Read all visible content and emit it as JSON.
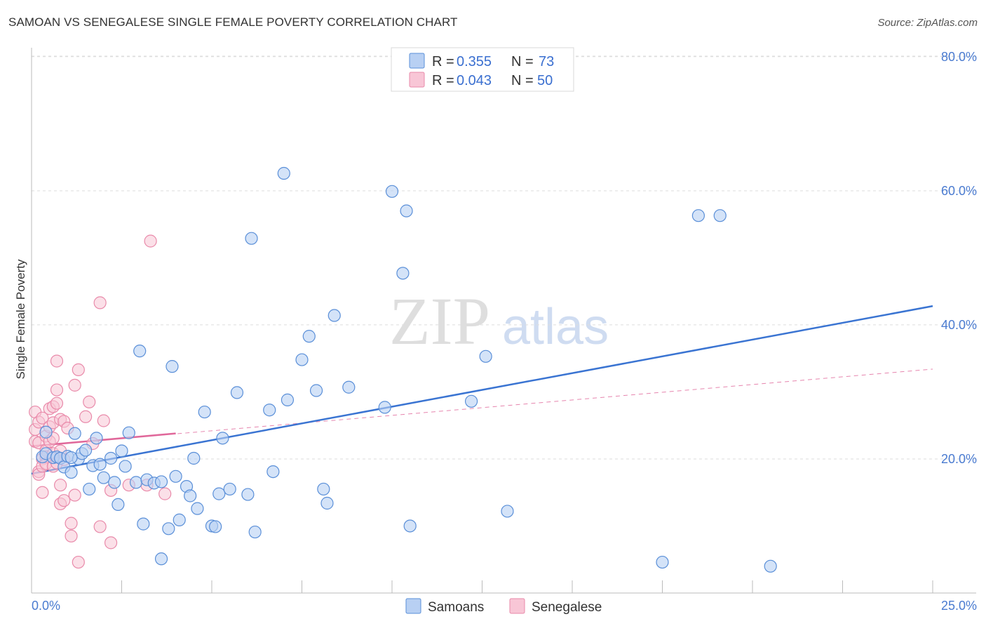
{
  "title": "SAMOAN VS SENEGALESE SINGLE FEMALE POVERTY CORRELATION CHART",
  "source": "Source: ZipAtlas.com",
  "watermark": {
    "zip": "ZIP",
    "atlas": "atlas"
  },
  "legend": {
    "r_label": "R =",
    "n_label": "N =",
    "rows": [
      {
        "r": "0.355",
        "n": "73"
      },
      {
        "r": "0.043",
        "n": "50"
      }
    ]
  },
  "colors": {
    "samoan_fill": "#b8d0f3",
    "samoan_stroke": "#5a8fd8",
    "samoan_line": "#3a74d2",
    "senegalese_fill": "#f8c6d6",
    "senegalese_stroke": "#e98aaa",
    "senegalese_line": "#e0679a",
    "tick_text": "#4a7bd0",
    "grid": "#dddddd"
  },
  "chart_data": {
    "type": "scatter",
    "title": "SAMOAN VS SENEGALESE SINGLE FEMALE POVERTY CORRELATION CHART",
    "xlabel": "",
    "ylabel": "Single Female Poverty",
    "xlim": [
      0,
      25
    ],
    "ylim": [
      0,
      80
    ],
    "x_tick_labels": [
      "0.0%",
      "25.0%"
    ],
    "y_ticks": [
      20,
      40,
      60,
      80
    ],
    "y_tick_labels": [
      "20.0%",
      "40.0%",
      "60.0%",
      "80.0%"
    ],
    "grid": true,
    "series": [
      {
        "name": "Samoans",
        "r": 0.355,
        "n": 73,
        "trend": {
          "x": [
            0,
            25
          ],
          "y": [
            17.8,
            42.8
          ]
        },
        "points": [
          [
            0.3,
            20.3
          ],
          [
            0.4,
            24.0
          ],
          [
            0.4,
            20.8
          ],
          [
            0.6,
            20.2
          ],
          [
            0.7,
            20.3
          ],
          [
            0.8,
            20.1
          ],
          [
            0.9,
            18.8
          ],
          [
            1.0,
            20.4
          ],
          [
            1.1,
            18.0
          ],
          [
            1.2,
            23.8
          ],
          [
            1.3,
            20.0
          ],
          [
            1.4,
            20.8
          ],
          [
            1.5,
            21.3
          ],
          [
            1.6,
            15.5
          ],
          [
            1.7,
            19.0
          ],
          [
            1.8,
            23.1
          ],
          [
            1.9,
            19.2
          ],
          [
            2.0,
            17.2
          ],
          [
            2.2,
            20.1
          ],
          [
            2.3,
            16.5
          ],
          [
            2.4,
            13.2
          ],
          [
            2.5,
            21.2
          ],
          [
            2.6,
            18.9
          ],
          [
            2.7,
            23.9
          ],
          [
            2.9,
            16.5
          ],
          [
            3.0,
            36.1
          ],
          [
            3.1,
            10.3
          ],
          [
            3.2,
            16.9
          ],
          [
            3.4,
            16.4
          ],
          [
            3.6,
            16.6
          ],
          [
            3.6,
            5.1
          ],
          [
            3.8,
            9.6
          ],
          [
            3.9,
            33.8
          ],
          [
            4.0,
            17.4
          ],
          [
            4.1,
            10.9
          ],
          [
            4.3,
            15.9
          ],
          [
            4.4,
            14.5
          ],
          [
            4.5,
            20.1
          ],
          [
            4.6,
            12.6
          ],
          [
            4.8,
            27.0
          ],
          [
            5.0,
            10.0
          ],
          [
            5.1,
            9.9
          ],
          [
            5.2,
            14.8
          ],
          [
            5.3,
            23.1
          ],
          [
            5.5,
            15.5
          ],
          [
            5.7,
            29.9
          ],
          [
            6.0,
            14.7
          ],
          [
            6.1,
            52.9
          ],
          [
            6.2,
            9.1
          ],
          [
            6.6,
            27.3
          ],
          [
            6.7,
            18.1
          ],
          [
            7.0,
            62.6
          ],
          [
            7.1,
            28.8
          ],
          [
            7.5,
            34.8
          ],
          [
            7.7,
            38.3
          ],
          [
            7.9,
            30.2
          ],
          [
            8.1,
            15.5
          ],
          [
            8.2,
            13.4
          ],
          [
            8.4,
            41.4
          ],
          [
            8.8,
            30.7
          ],
          [
            9.8,
            27.7
          ],
          [
            10.0,
            59.9
          ],
          [
            10.3,
            47.7
          ],
          [
            10.4,
            57.0
          ],
          [
            10.5,
            10.0
          ],
          [
            12.2,
            28.6
          ],
          [
            12.6,
            35.3
          ],
          [
            13.2,
            12.2
          ],
          [
            17.5,
            4.6
          ],
          [
            18.5,
            56.3
          ],
          [
            19.1,
            56.3
          ],
          [
            20.5,
            4.0
          ],
          [
            1.1,
            20.2
          ]
        ]
      },
      {
        "name": "Senegalese",
        "r": 0.043,
        "n": 50,
        "trend": {
          "x": [
            0,
            4
          ],
          "y": [
            21.9,
            23.8
          ]
        },
        "trend_dashed": {
          "x": [
            0,
            25
          ],
          "y": [
            21.9,
            33.4
          ]
        },
        "points": [
          [
            0.1,
            27.0
          ],
          [
            0.1,
            24.4
          ],
          [
            0.1,
            22.6
          ],
          [
            0.2,
            18.1
          ],
          [
            0.2,
            17.7
          ],
          [
            0.2,
            25.5
          ],
          [
            0.2,
            22.4
          ],
          [
            0.3,
            26.1
          ],
          [
            0.3,
            20.0
          ],
          [
            0.3,
            18.9
          ],
          [
            0.3,
            15.0
          ],
          [
            0.4,
            23.4
          ],
          [
            0.4,
            21.3
          ],
          [
            0.4,
            20.3
          ],
          [
            0.4,
            19.3
          ],
          [
            0.5,
            27.5
          ],
          [
            0.5,
            24.8
          ],
          [
            0.5,
            22.6
          ],
          [
            0.6,
            27.8
          ],
          [
            0.6,
            25.4
          ],
          [
            0.6,
            23.1
          ],
          [
            0.6,
            20.8
          ],
          [
            0.6,
            18.9
          ],
          [
            0.7,
            28.3
          ],
          [
            0.7,
            30.3
          ],
          [
            0.7,
            34.6
          ],
          [
            0.7,
            19.4
          ],
          [
            0.8,
            25.9
          ],
          [
            0.8,
            21.2
          ],
          [
            0.8,
            16.1
          ],
          [
            0.8,
            13.3
          ],
          [
            0.9,
            25.6
          ],
          [
            0.9,
            13.8
          ],
          [
            0.9,
            19.9
          ],
          [
            1.0,
            24.6
          ],
          [
            1.1,
            10.4
          ],
          [
            1.1,
            8.5
          ],
          [
            1.2,
            14.6
          ],
          [
            1.2,
            31.0
          ],
          [
            1.3,
            4.6
          ],
          [
            1.3,
            33.3
          ],
          [
            1.5,
            26.3
          ],
          [
            1.6,
            28.5
          ],
          [
            1.7,
            22.3
          ],
          [
            1.9,
            9.9
          ],
          [
            1.9,
            43.3
          ],
          [
            2.0,
            25.7
          ],
          [
            2.2,
            15.3
          ],
          [
            2.2,
            7.5
          ],
          [
            2.7,
            16.1
          ]
        ]
      }
    ],
    "extra_senegalese": [
      [
        3.3,
        52.5
      ],
      [
        3.7,
        14.8
      ],
      [
        3.2,
        16.1
      ]
    ]
  },
  "bottom_legend": [
    "Samoans",
    "Senegalese"
  ]
}
